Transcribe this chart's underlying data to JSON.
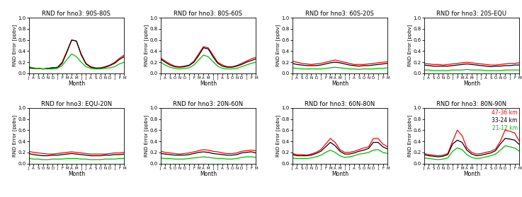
{
  "titles": [
    "RND for hno3: 90S-80S",
    "RND for hno3: 80S-60S",
    "RND for hno3: 60S-20S",
    "RND for hno3: 20S-EQU",
    "RND for hno3: EQU-20N",
    "RND for hno3: 20N-60N",
    "RND for hno3: 60N-80N",
    "RND for hno3: 80N-90N"
  ],
  "xlabel": "Month",
  "ylabel": "RND Error [ppbv]",
  "xtick_labels": [
    "J",
    "A",
    "S",
    "O",
    "N",
    "D",
    "J",
    "F",
    "M",
    "A",
    "M",
    "J",
    "J",
    "A",
    "S",
    "O",
    "N",
    "D",
    "J",
    "F",
    "M"
  ],
  "ylim": [
    0.0,
    1.0
  ],
  "yticks": [
    0.0,
    0.2,
    0.4,
    0.6,
    0.8,
    1.0
  ],
  "colors": {
    "red": "#ff0000",
    "black": "#000000",
    "green": "#00bb00"
  },
  "legend_labels": [
    "47-36 km",
    "33-24 km",
    "21-12 km"
  ],
  "n_points": 21,
  "series": {
    "90S-80S": {
      "red": [
        0.1,
        0.09,
        0.09,
        0.08,
        0.09,
        0.1,
        0.11,
        0.2,
        0.4,
        0.6,
        0.58,
        0.35,
        0.18,
        0.12,
        0.1,
        0.1,
        0.12,
        0.15,
        0.2,
        0.27,
        0.33
      ],
      "black": [
        0.1,
        0.09,
        0.09,
        0.08,
        0.09,
        0.1,
        0.1,
        0.18,
        0.38,
        0.6,
        0.58,
        0.33,
        0.17,
        0.11,
        0.09,
        0.09,
        0.11,
        0.14,
        0.18,
        0.25,
        0.3
      ],
      "green": [
        0.12,
        0.1,
        0.09,
        0.08,
        0.08,
        0.08,
        0.09,
        0.14,
        0.25,
        0.35,
        0.3,
        0.2,
        0.12,
        0.09,
        0.08,
        0.08,
        0.09,
        0.1,
        0.12,
        0.17,
        0.2
      ]
    },
    "80S-60S": {
      "red": [
        0.28,
        0.22,
        0.17,
        0.13,
        0.12,
        0.13,
        0.15,
        0.22,
        0.35,
        0.48,
        0.46,
        0.33,
        0.2,
        0.15,
        0.12,
        0.12,
        0.14,
        0.18,
        0.22,
        0.26,
        0.29
      ],
      "black": [
        0.26,
        0.2,
        0.15,
        0.12,
        0.11,
        0.12,
        0.14,
        0.2,
        0.32,
        0.46,
        0.44,
        0.3,
        0.18,
        0.13,
        0.11,
        0.11,
        0.13,
        0.16,
        0.2,
        0.23,
        0.26
      ],
      "green": [
        0.2,
        0.15,
        0.11,
        0.09,
        0.08,
        0.09,
        0.1,
        0.15,
        0.24,
        0.33,
        0.3,
        0.21,
        0.13,
        0.09,
        0.08,
        0.08,
        0.09,
        0.12,
        0.15,
        0.18,
        0.2
      ]
    },
    "60S-20S": {
      "red": [
        0.22,
        0.2,
        0.18,
        0.17,
        0.16,
        0.17,
        0.18,
        0.2,
        0.22,
        0.24,
        0.22,
        0.2,
        0.18,
        0.16,
        0.16,
        0.16,
        0.17,
        0.18,
        0.19,
        0.2,
        0.21
      ],
      "black": [
        0.18,
        0.16,
        0.15,
        0.14,
        0.14,
        0.14,
        0.15,
        0.17,
        0.19,
        0.2,
        0.19,
        0.17,
        0.15,
        0.14,
        0.13,
        0.14,
        0.14,
        0.15,
        0.16,
        0.17,
        0.18
      ],
      "green": [
        0.1,
        0.09,
        0.08,
        0.08,
        0.08,
        0.08,
        0.08,
        0.09,
        0.1,
        0.11,
        0.1,
        0.09,
        0.08,
        0.08,
        0.07,
        0.08,
        0.08,
        0.08,
        0.09,
        0.09,
        0.1
      ]
    },
    "20S-EQU": {
      "red": [
        0.18,
        0.17,
        0.16,
        0.16,
        0.15,
        0.16,
        0.17,
        0.18,
        0.19,
        0.2,
        0.19,
        0.18,
        0.17,
        0.16,
        0.15,
        0.15,
        0.16,
        0.17,
        0.18,
        0.18,
        0.19
      ],
      "black": [
        0.15,
        0.14,
        0.13,
        0.13,
        0.13,
        0.13,
        0.14,
        0.15,
        0.16,
        0.17,
        0.16,
        0.15,
        0.14,
        0.13,
        0.12,
        0.13,
        0.13,
        0.14,
        0.14,
        0.15,
        0.15
      ],
      "green": [
        0.06,
        0.06,
        0.05,
        0.05,
        0.05,
        0.05,
        0.06,
        0.06,
        0.06,
        0.07,
        0.06,
        0.06,
        0.06,
        0.05,
        0.05,
        0.05,
        0.05,
        0.06,
        0.06,
        0.06,
        0.06
      ]
    },
    "EQU-20N": {
      "red": [
        0.22,
        0.2,
        0.19,
        0.18,
        0.17,
        0.17,
        0.18,
        0.19,
        0.2,
        0.21,
        0.2,
        0.19,
        0.18,
        0.17,
        0.17,
        0.17,
        0.17,
        0.18,
        0.19,
        0.19,
        0.2
      ],
      "black": [
        0.18,
        0.16,
        0.15,
        0.14,
        0.14,
        0.15,
        0.15,
        0.16,
        0.17,
        0.18,
        0.17,
        0.16,
        0.15,
        0.14,
        0.14,
        0.14,
        0.15,
        0.15,
        0.16,
        0.16,
        0.17
      ],
      "green": [
        0.09,
        0.08,
        0.08,
        0.07,
        0.07,
        0.08,
        0.08,
        0.08,
        0.09,
        0.09,
        0.09,
        0.08,
        0.08,
        0.07,
        0.07,
        0.07,
        0.08,
        0.08,
        0.08,
        0.09,
        0.09
      ]
    },
    "20N-60N": {
      "red": [
        0.22,
        0.2,
        0.19,
        0.18,
        0.17,
        0.18,
        0.19,
        0.21,
        0.23,
        0.25,
        0.24,
        0.22,
        0.21,
        0.19,
        0.18,
        0.18,
        0.19,
        0.22,
        0.23,
        0.24,
        0.23
      ],
      "black": [
        0.18,
        0.17,
        0.16,
        0.15,
        0.15,
        0.15,
        0.16,
        0.18,
        0.2,
        0.21,
        0.2,
        0.18,
        0.17,
        0.16,
        0.15,
        0.15,
        0.16,
        0.19,
        0.2,
        0.21,
        0.19
      ],
      "green": [
        0.1,
        0.09,
        0.09,
        0.08,
        0.08,
        0.08,
        0.09,
        0.1,
        0.11,
        0.12,
        0.11,
        0.1,
        0.09,
        0.09,
        0.08,
        0.08,
        0.09,
        0.11,
        0.12,
        0.12,
        0.11
      ]
    },
    "60N-80N": {
      "red": [
        0.18,
        0.16,
        0.16,
        0.15,
        0.17,
        0.2,
        0.25,
        0.35,
        0.45,
        0.38,
        0.25,
        0.2,
        0.2,
        0.22,
        0.25,
        0.28,
        0.3,
        0.45,
        0.45,
        0.35,
        0.3
      ],
      "black": [
        0.16,
        0.14,
        0.14,
        0.14,
        0.15,
        0.18,
        0.22,
        0.3,
        0.38,
        0.32,
        0.22,
        0.17,
        0.17,
        0.19,
        0.22,
        0.24,
        0.27,
        0.38,
        0.38,
        0.3,
        0.26
      ],
      "green": [
        0.1,
        0.09,
        0.09,
        0.09,
        0.1,
        0.12,
        0.15,
        0.2,
        0.24,
        0.2,
        0.14,
        0.11,
        0.12,
        0.14,
        0.17,
        0.18,
        0.2,
        0.24,
        0.25,
        0.2,
        0.18
      ]
    },
    "80N-90N": {
      "red": [
        0.18,
        0.16,
        0.15,
        0.14,
        0.15,
        0.18,
        0.4,
        0.6,
        0.5,
        0.28,
        0.2,
        0.17,
        0.18,
        0.2,
        0.22,
        0.26,
        0.4,
        0.6,
        0.58,
        0.55,
        0.4
      ],
      "black": [
        0.16,
        0.14,
        0.13,
        0.12,
        0.13,
        0.16,
        0.35,
        0.42,
        0.38,
        0.24,
        0.17,
        0.14,
        0.15,
        0.17,
        0.19,
        0.23,
        0.35,
        0.45,
        0.44,
        0.42,
        0.34
      ],
      "green": [
        0.1,
        0.09,
        0.08,
        0.07,
        0.08,
        0.1,
        0.22,
        0.28,
        0.25,
        0.16,
        0.11,
        0.09,
        0.1,
        0.12,
        0.14,
        0.17,
        0.24,
        0.32,
        0.3,
        0.28,
        0.22
      ]
    }
  }
}
